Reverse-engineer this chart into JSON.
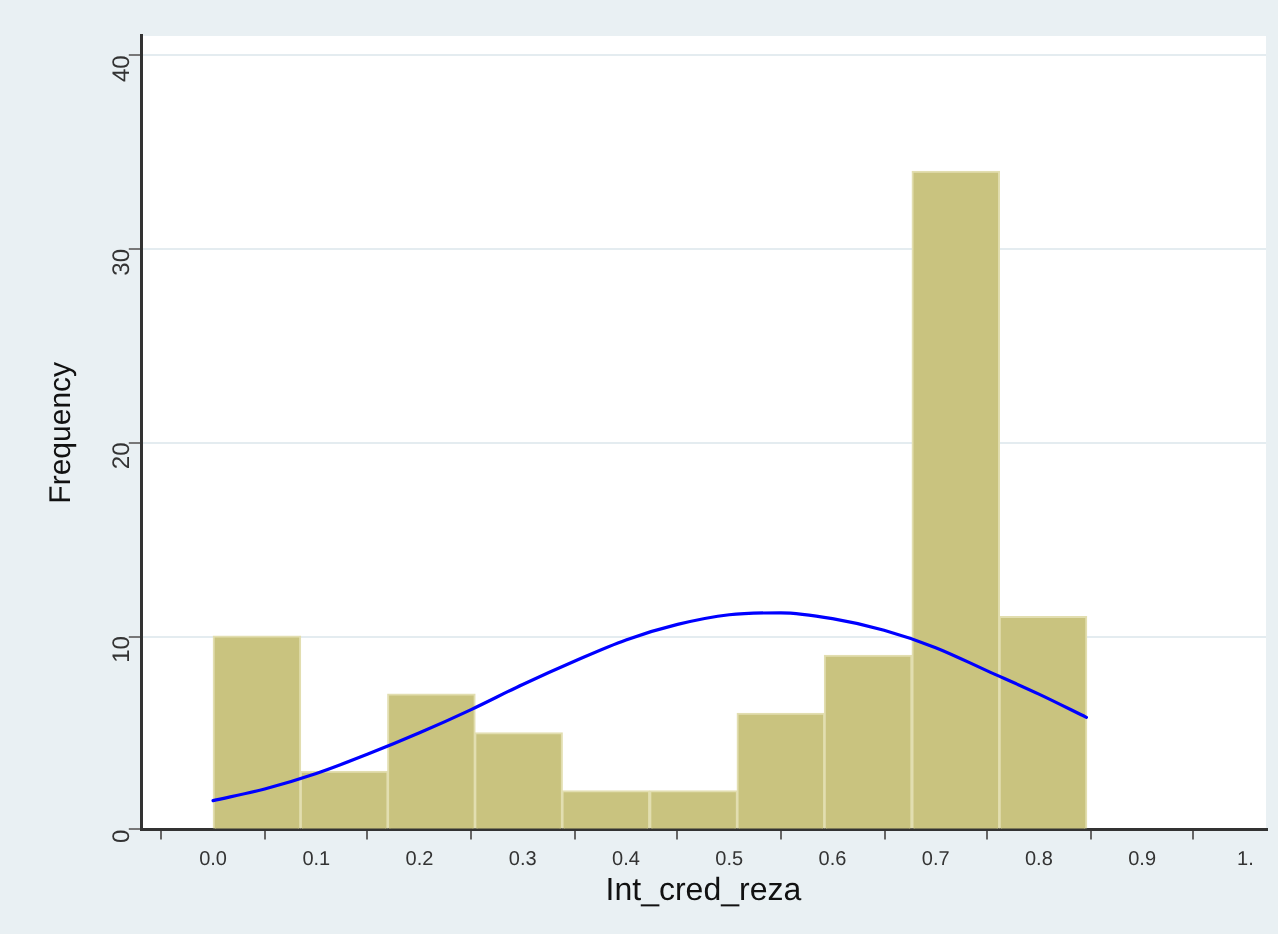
{
  "chart_data": {
    "type": "histogram",
    "xlabel": "Int_cred_reza",
    "ylabel": "Frequency",
    "bins": [
      0,
      0.085,
      0.169,
      0.254,
      0.338,
      0.423,
      0.508,
      0.592,
      0.677,
      0.762,
      0.846
    ],
    "series": [
      {
        "color": "#c9c37f",
        "values": [
          10,
          3,
          7,
          5,
          2,
          2,
          6,
          9,
          34,
          11
        ]
      },
      {
        "type": "line",
        "color": "#0000ff",
        "x": [
          0,
          0.05,
          0.1,
          0.15,
          0.2,
          0.25,
          0.3,
          0.35,
          0.4,
          0.45,
          0.5,
          0.55,
          0.6,
          0.65,
          0.7,
          0.75,
          0.8,
          0.846
        ],
        "values": [
          1.5,
          2.1,
          2.9,
          3.9,
          5.0,
          6.2,
          7.5,
          8.7,
          9.8,
          10.6,
          11.1,
          11.2,
          10.9,
          10.3,
          9.4,
          8.2,
          7.0,
          5.8
        ]
      }
    ],
    "xlim": [
      -0.07,
      1.02
    ],
    "xticks": [
      {
        "value": 0,
        "label": "0.0"
      },
      0.1,
      0.2,
      0.3,
      0.4,
      0.5,
      0.6,
      0.7,
      0.8,
      0.9,
      {
        "value": 1,
        "label": "1."
      }
    ],
    "ylim": [
      0,
      41
    ],
    "yticks": [
      0,
      10,
      20,
      30,
      40
    ],
    "grid": "y"
  }
}
